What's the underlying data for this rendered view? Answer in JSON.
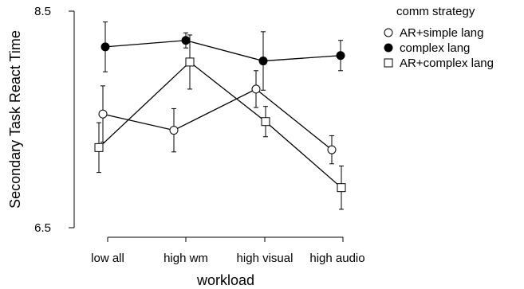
{
  "chart_data": {
    "type": "line",
    "xlabel": "workload",
    "ylabel": "Secondary Task React Time",
    "categories": [
      "low all",
      "high wm",
      "high visual",
      "high audio"
    ],
    "ylim": [
      6.5,
      8.5
    ],
    "yticks": [
      "6.5",
      "8.5"
    ],
    "legend": {
      "title": "comm strategy",
      "position": "top-right"
    },
    "series": [
      {
        "name": "AR+simple lang",
        "marker": "open-circle",
        "values": [
          7.55,
          7.4,
          7.78,
          7.22
        ],
        "err": [
          0.26,
          0.2,
          0.17,
          0.13
        ]
      },
      {
        "name": "complex lang",
        "marker": "filled-circle",
        "values": [
          8.17,
          8.23,
          8.04,
          8.09
        ],
        "err": [
          0.23,
          0.07,
          0.27,
          0.14
        ]
      },
      {
        "name": "AR+complex lang",
        "marker": "open-square",
        "values": [
          7.24,
          8.03,
          7.48,
          6.87
        ],
        "err": [
          0.23,
          0.25,
          0.14,
          0.2
        ]
      }
    ],
    "grid": false
  }
}
